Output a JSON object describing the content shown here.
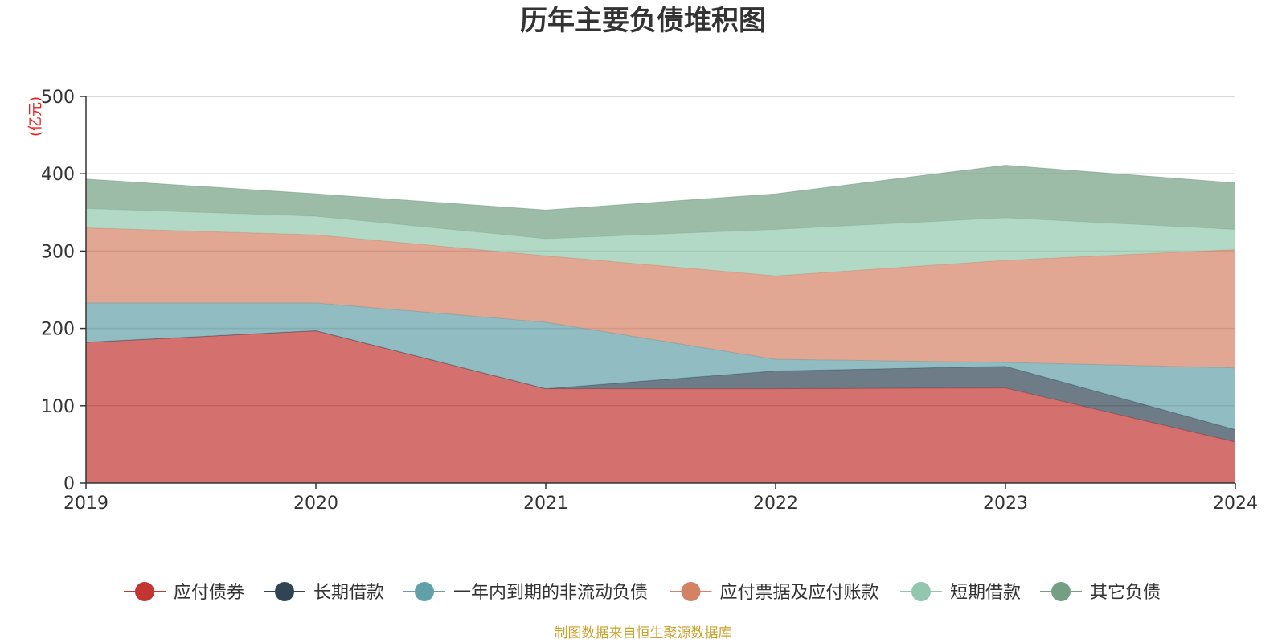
{
  "chart_data": {
    "type": "area",
    "stacked": true,
    "title": "历年主要负债堆积图",
    "unit": "(亿元)",
    "x": [
      "2019",
      "2020",
      "2021",
      "2022",
      "2023",
      "2024"
    ],
    "ylim": [
      0,
      500
    ],
    "yticks": [
      "0",
      "100",
      "200",
      "300",
      "400",
      "500"
    ],
    "grid": true,
    "legend_position": "bottom",
    "series": [
      {
        "name": "应付债券",
        "color": "#c23531",
        "values": [
          182,
          197,
          122,
          122,
          123,
          53
        ]
      },
      {
        "name": "长期借款",
        "color": "#2f4554",
        "values": [
          0,
          0,
          0,
          23,
          28,
          16
        ]
      },
      {
        "name": "一年内到期的非流动负债",
        "color": "#61a0a8",
        "values": [
          51,
          36,
          86,
          15,
          5,
          80
        ]
      },
      {
        "name": "应付票据及应付账款",
        "color": "#d48265",
        "values": [
          97,
          88,
          86,
          108,
          132,
          153
        ]
      },
      {
        "name": "短期借款",
        "color": "#91c7ae",
        "values": [
          25,
          24,
          22,
          60,
          55,
          26
        ]
      },
      {
        "name": "其它负债",
        "color": "#749f83",
        "values": [
          38,
          29,
          37,
          46,
          68,
          60
        ]
      }
    ],
    "source": "制图数据来自恒生聚源数据库"
  }
}
